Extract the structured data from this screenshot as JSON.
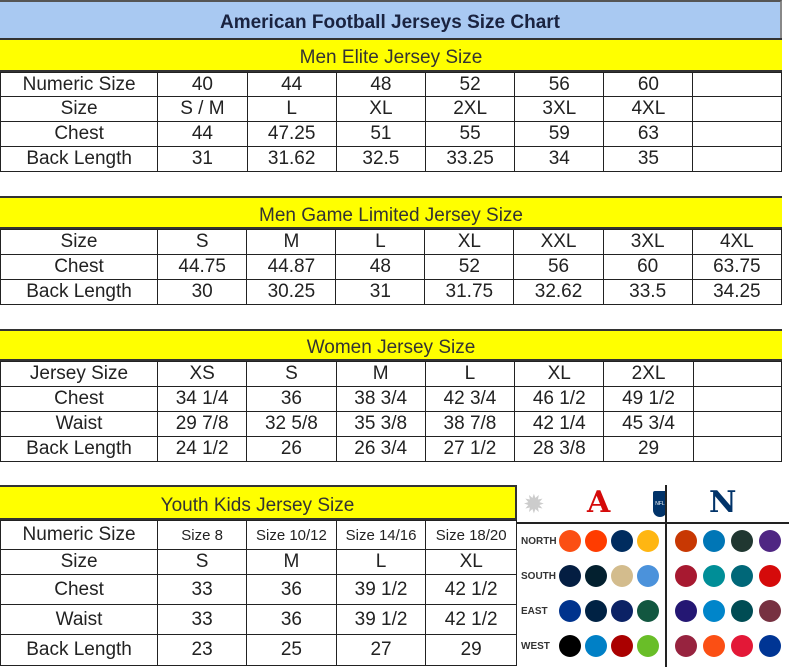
{
  "title": "American Football Jerseys Size Chart",
  "men_elite": {
    "header": "Men Elite Jersey Size",
    "rows": [
      [
        "Numeric Size",
        "40",
        "44",
        "48",
        "52",
        "56",
        "60",
        ""
      ],
      [
        "Size",
        "S / M",
        "L",
        "XL",
        "2XL",
        "3XL",
        "4XL",
        ""
      ],
      [
        "Chest",
        "44",
        "47.25",
        "51",
        "55",
        "59",
        "63",
        ""
      ],
      [
        "Back Length",
        "31",
        "31.62",
        "32.5",
        "33.25",
        "34",
        "35",
        ""
      ]
    ]
  },
  "men_game": {
    "header": "Men Game Limited Jersey Size",
    "rows": [
      [
        "Size",
        "S",
        "M",
        "L",
        "XL",
        "XXL",
        "3XL",
        "4XL"
      ],
      [
        "Chest",
        "44.75",
        "44.87",
        "48",
        "52",
        "56",
        "60",
        "63.75"
      ],
      [
        "Back Length",
        "30",
        "30.25",
        "31",
        "31.75",
        "32.62",
        "33.5",
        "34.25"
      ]
    ]
  },
  "women": {
    "header": "Women Jersey Size",
    "rows": [
      [
        "Jersey Size",
        "XS",
        "S",
        "M",
        "L",
        "XL",
        "2XL",
        ""
      ],
      [
        "Chest",
        "34 1/4",
        "36",
        "38 3/4",
        "42 3/4",
        "46 1/2",
        "49 1/2",
        ""
      ],
      [
        "Waist",
        "29 7/8",
        "32 5/8",
        "35 3/8",
        "38 7/8",
        "42 1/4",
        "45 3/4",
        ""
      ],
      [
        "Back Length",
        "24 1/2",
        "26",
        "26 3/4",
        "27 1/2",
        "28 3/8",
        "29",
        ""
      ]
    ]
  },
  "youth": {
    "header": "Youth Kids Jersey Size",
    "rows": [
      [
        "Numeric Size",
        "Size 8",
        "Size 10/12",
        "Size 14/16",
        "Size 18/20"
      ],
      [
        "Size",
        "S",
        "M",
        "L",
        "XL"
      ],
      [
        "Chest",
        "33",
        "36",
        "39 1/2",
        "42 1/2"
      ],
      [
        "Waist",
        "33",
        "36",
        "39 1/2",
        "42 1/2"
      ],
      [
        "Back Length",
        "23",
        "25",
        "27",
        "29"
      ]
    ]
  },
  "logos": {
    "afc": "A",
    "nfc": "N",
    "nfl": "NFL",
    "divisions": [
      "NORTH",
      "SOUTH",
      "EAST",
      "WEST"
    ],
    "afc_teams": [
      [
        "#fb4f14",
        "#ff3c00",
        "#002c5f",
        "#ffb612"
      ],
      [
        "#041e42",
        "#03202f",
        "#d3bc8d",
        "#4b92db"
      ],
      [
        "#00338d",
        "#002244",
        "#0b2265",
        "#125740"
      ],
      [
        "#000000",
        "#0080c6",
        "#aa0000",
        "#69be28"
      ]
    ],
    "nfc_teams": [
      [
        "#c83803",
        "#0076b6",
        "#203731",
        "#4f2683"
      ],
      [
        "#a71930",
        "#008e97",
        "#006778",
        "#d50a0a"
      ],
      [
        "#241773",
        "#0085ca",
        "#004c54",
        "#773141"
      ],
      [
        "#97233f",
        "#fb4f14",
        "#e31837",
        "#003594"
      ]
    ]
  }
}
